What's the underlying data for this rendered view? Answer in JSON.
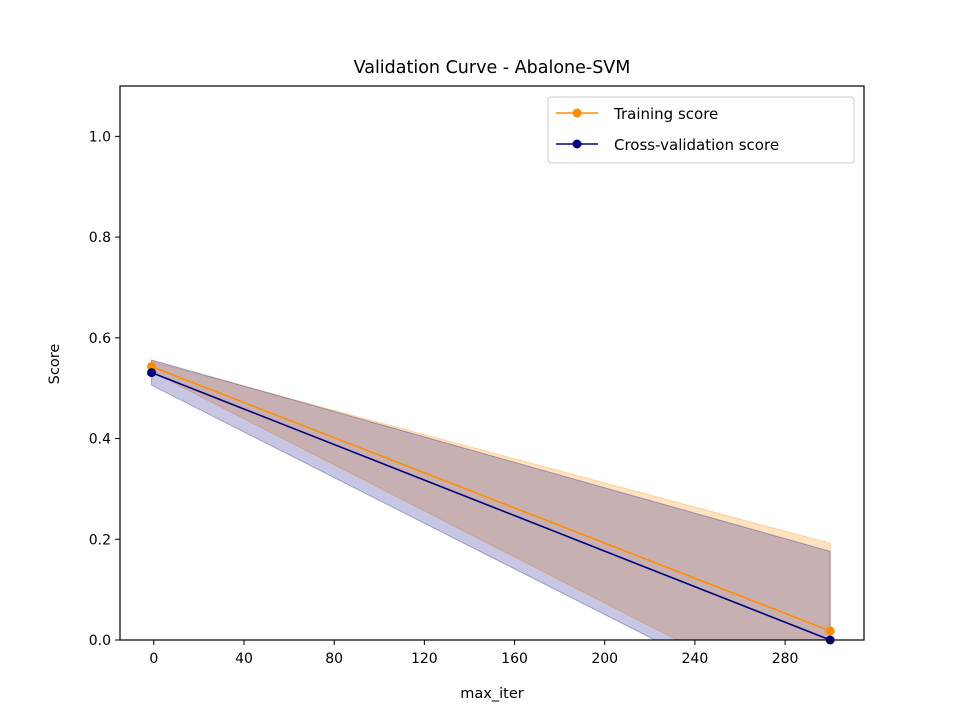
{
  "chart_data": {
    "type": "line",
    "title": "Validation Curve - Abalone-SVM",
    "xlabel": "max_iter",
    "ylabel": "Score",
    "xlim": [
      -15,
      315
    ],
    "ylim": [
      0.0,
      1.1
    ],
    "xticks": [
      "0",
      "40",
      "80",
      "120",
      "160",
      "200",
      "240",
      "280"
    ],
    "xtick_values": [
      0,
      40,
      80,
      120,
      160,
      200,
      240,
      280
    ],
    "yticks": [
      "0.0",
      "0.2",
      "0.4",
      "0.6",
      "0.8",
      "1.0"
    ],
    "ytick_values": [
      0.0,
      0.2,
      0.4,
      0.6,
      0.8,
      1.0
    ],
    "x": [
      -1,
      300
    ],
    "grid": false,
    "legend_position": "top-right",
    "series": [
      {
        "name": "Training score",
        "color": "#ff8c00",
        "values": [
          0.543,
          0.018
        ],
        "lower": [
          0.533,
          -0.155
        ],
        "upper": [
          0.553,
          0.192
        ]
      },
      {
        "name": "Cross-validation score",
        "color": "#000080",
        "values": [
          0.531,
          0.0
        ],
        "lower": [
          0.506,
          -0.176
        ],
        "upper": [
          0.556,
          0.176
        ]
      }
    ]
  }
}
